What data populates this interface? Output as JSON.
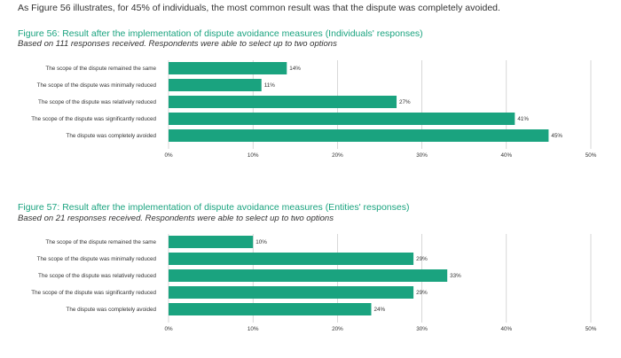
{
  "intro": "As Figure 56 illustrates, for 45% of individuals, the most common result was that the dispute was completely avoided.",
  "colors": {
    "bar": "#1aa37f",
    "title": "#1aa37f",
    "grid": "#bdbdbd"
  },
  "chart_data": [
    {
      "id": "fig56",
      "type": "bar",
      "orientation": "horizontal",
      "title": "Figure 56: Result after the implementation of dispute avoidance measures (Individuals' responses)",
      "subtitle": "Based on 111 responses received. Respondents were able to select up to two options",
      "categories": [
        "The scope of the dispute remained the same",
        "The scope of the dispute was minimally reduced",
        "The scope of the dispute was relatively reduced",
        "The scope of the dispute was significantly reduced",
        "The dispute was completely avoided"
      ],
      "values": [
        14,
        11,
        27,
        41,
        45
      ],
      "value_labels": [
        "14%",
        "11%",
        "27%",
        "41%",
        "45%"
      ],
      "xticks": [
        0,
        10,
        20,
        30,
        40,
        50
      ],
      "xtick_labels": [
        "0%",
        "10%",
        "20%",
        "30%",
        "40%",
        "50%"
      ],
      "xlim": [
        0,
        50
      ],
      "xlabel": "",
      "ylabel": ""
    },
    {
      "id": "fig57",
      "type": "bar",
      "orientation": "horizontal",
      "title": "Figure 57: Result after the implementation of dispute avoidance measures (Entities' responses)",
      "subtitle": "Based on 21 responses received. Respondents were able to select up to two options",
      "categories": [
        "The scope of the dispute remained the same",
        "The scope of the dispute was minimally reduced",
        "The scope of the dispute was relatively reduced",
        "The scope of the dispute was significantly reduced",
        "The dispute was completely avoided"
      ],
      "values": [
        10,
        29,
        33,
        29,
        24
      ],
      "value_labels": [
        "10%",
        "29%",
        "33%",
        "29%",
        "24%"
      ],
      "xticks": [
        0,
        10,
        20,
        30,
        40,
        50
      ],
      "xtick_labels": [
        "0%",
        "10%",
        "20%",
        "30%",
        "40%",
        "50%"
      ],
      "xlim": [
        0,
        50
      ],
      "xlabel": "",
      "ylabel": ""
    }
  ]
}
